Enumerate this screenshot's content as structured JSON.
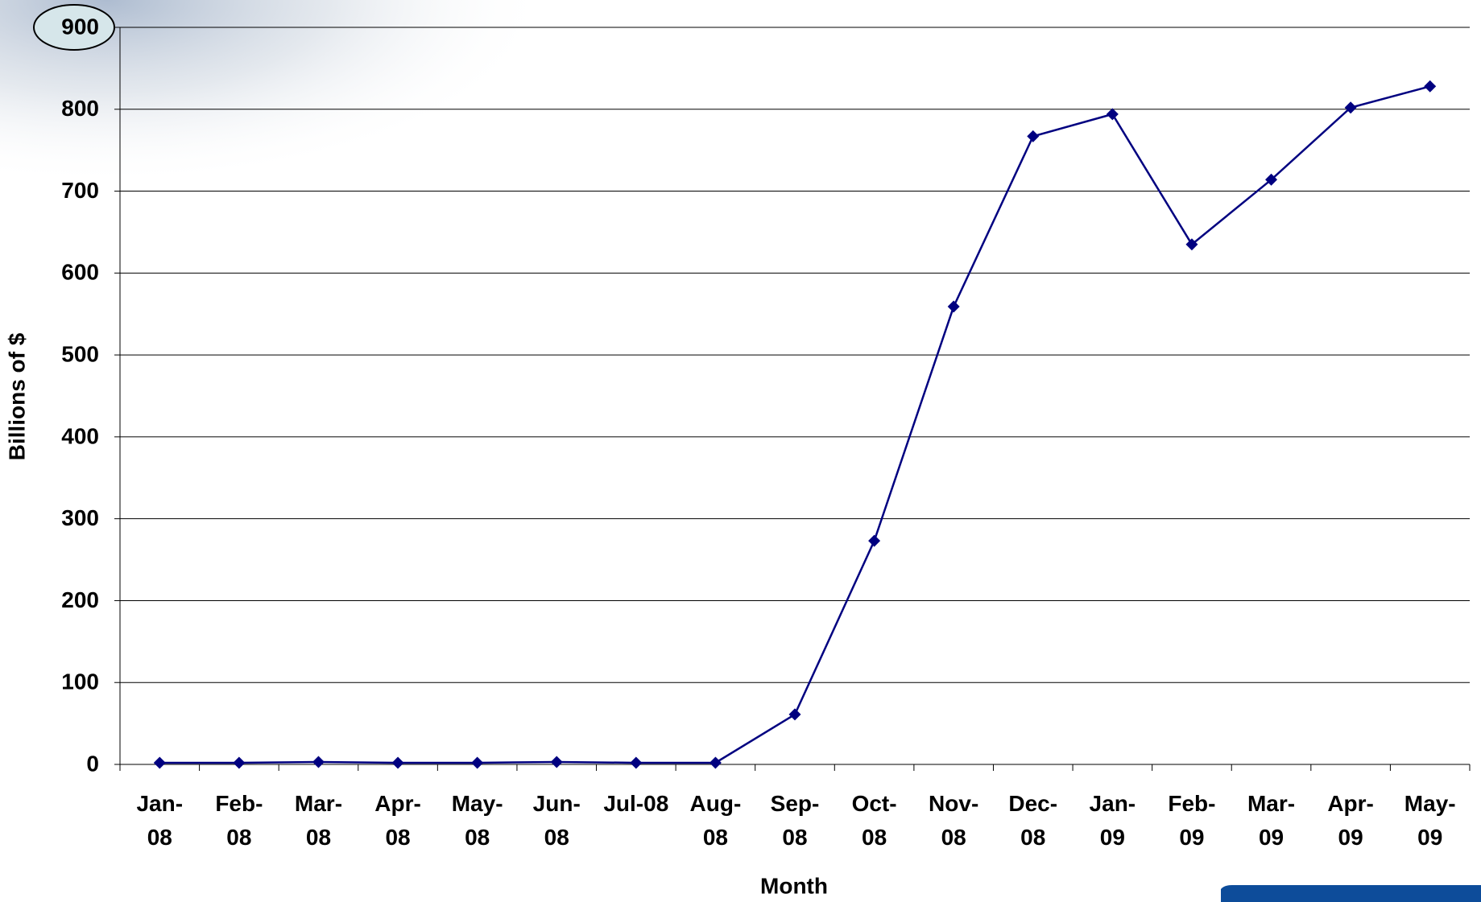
{
  "chart_data": {
    "type": "line",
    "x_label": "Month",
    "y_label": "Billions of $",
    "categories": [
      "Jan-08",
      "Feb-08",
      "Mar-08",
      "Apr-08",
      "May-08",
      "Jun-08",
      "Jul-08",
      "Aug-08",
      "Sep-08",
      "Oct-08",
      "Nov-08",
      "Dec-08",
      "Jan-09",
      "Feb-09",
      "Mar-09",
      "Apr-09",
      "May-09"
    ],
    "values": [
      2,
      2,
      3,
      2,
      2,
      3,
      2,
      2,
      61,
      273,
      559,
      767,
      794,
      635,
      714,
      802,
      828
    ],
    "color": "#000080",
    "ylim": [
      0,
      900
    ],
    "yticks": [
      0,
      100,
      200,
      300,
      400,
      500,
      600,
      700,
      800,
      900
    ],
    "grid": true
  }
}
